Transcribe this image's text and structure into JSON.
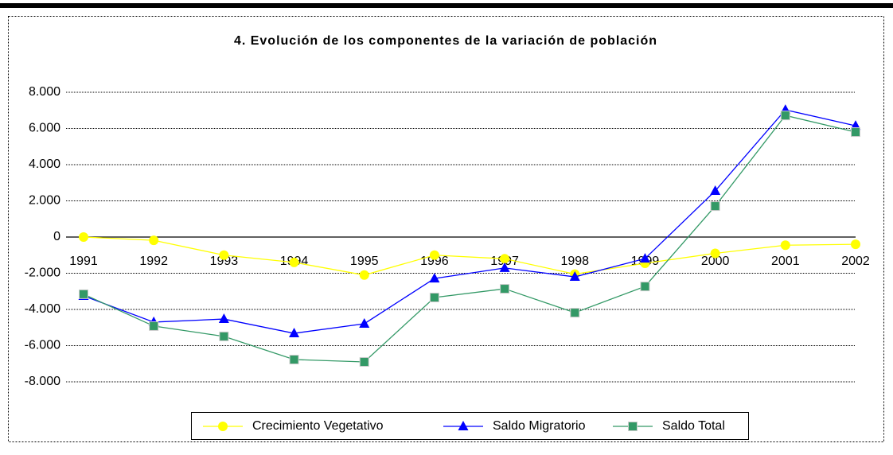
{
  "chart_data": {
    "type": "line",
    "title": "4. Evolución de los componentes de la variación de población",
    "categories": [
      "1991",
      "1992",
      "1993",
      "1994",
      "1995",
      "1996",
      "1997",
      "1998",
      "1999",
      "2000",
      "2001",
      "2002"
    ],
    "series": [
      {
        "name": "Crecimiento Vegetativo",
        "color": "#ffff00",
        "marker": "circle",
        "values": [
          0,
          -180,
          -1000,
          -1400,
          -2100,
          -1000,
          -1200,
          -2050,
          -1450,
          -900,
          -450,
          -400
        ]
      },
      {
        "name": "Saldo Migratorio",
        "color": "#0000ff",
        "marker": "triangle",
        "values": [
          -3250,
          -4700,
          -4530,
          -5320,
          -4790,
          -2290,
          -1710,
          -2200,
          -1190,
          2550,
          7030,
          6150
        ]
      },
      {
        "name": "Saldo Total",
        "color": "#339966",
        "marker": "square",
        "values": [
          -3160,
          -4920,
          -5490,
          -6770,
          -6900,
          -3340,
          -2860,
          -4180,
          -2730,
          1710,
          6720,
          5800
        ]
      }
    ],
    "ylim": [
      -8000,
      8000
    ],
    "yticks": [
      {
        "value": -8000,
        "label": "-8.000"
      },
      {
        "value": -6000,
        "label": "-6.000"
      },
      {
        "value": -4000,
        "label": "-4.000"
      },
      {
        "value": -2000,
        "label": "-2.000"
      },
      0,
      {
        "value": 2000,
        "label": "2.000"
      },
      {
        "value": 4000,
        "label": "4.000"
      },
      {
        "value": 6000,
        "label": "6.000"
      },
      {
        "value": 8000,
        "label": "8.000"
      }
    ],
    "grid": true,
    "legend": "bottom"
  }
}
